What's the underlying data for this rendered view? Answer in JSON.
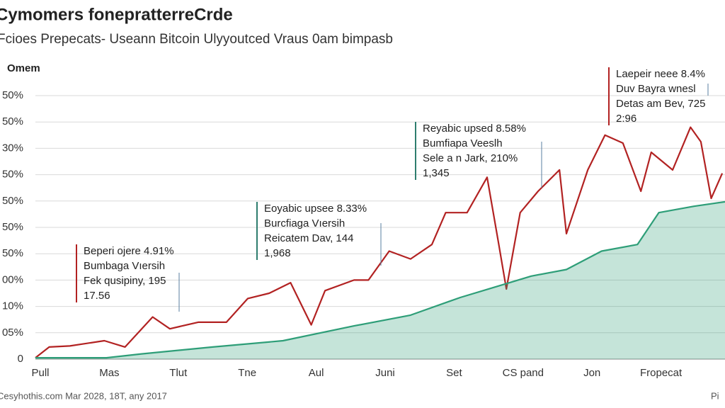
{
  "chart_data": {
    "type": "line",
    "title": "Cymomers fonepratterreCrde",
    "subtitle": "Fcioes Prepecats- Useann Bitcoin Ulyyoutced Vraus 0am bimpasb",
    "y_axis_label": "Omem",
    "footer": "Cesyhothis.com Mar 2028, 18T, any 2017",
    "footer_right": "Pi",
    "xlim": [
      0,
      100
    ],
    "xticks": [
      {
        "value": 0,
        "label": "Pull"
      },
      {
        "value": 10,
        "label": "Mas"
      },
      {
        "value": 20,
        "label": "Tlut"
      },
      {
        "value": 30,
        "label": "Tne"
      },
      {
        "value": 40,
        "label": "Aul"
      },
      {
        "value": 50,
        "label": "Juni"
      },
      {
        "value": 60,
        "label": "Set"
      },
      {
        "value": 70,
        "label": "CS pand"
      },
      {
        "value": 80,
        "label": "Jon"
      },
      {
        "value": 90,
        "label": "Fropecat"
      }
    ],
    "ylim": [
      0,
      100
    ],
    "yticks": [
      0,
      {
        "value": 10,
        "label": "05%"
      },
      {
        "value": 20,
        "label": "10%"
      },
      {
        "value": 30,
        "label": "00%"
      },
      {
        "value": 40,
        "label": "50%"
      },
      {
        "value": 50,
        "label": "50%"
      },
      {
        "value": 60,
        "label": "50%"
      },
      {
        "value": 70,
        "label": "50%"
      },
      {
        "value": 80,
        "label": "30%"
      },
      {
        "value": 90,
        "label": "50%"
      },
      {
        "value": 100,
        "label": "50%"
      }
    ],
    "grid": true,
    "series": [
      {
        "color": "#b22222",
        "fill": false,
        "x": [
          0,
          2,
          5,
          10,
          13,
          17,
          19.5,
          23.6,
          27.7,
          30.8,
          33.9,
          37,
          40,
          42,
          46.2,
          48.3,
          51.3,
          54.4,
          57.5,
          59.5,
          62.6,
          65.5,
          67.2,
          68.3,
          70.3,
          72.9,
          76,
          77,
          80.1,
          82.6,
          85.2,
          87.8,
          89.3,
          92.4,
          95,
          96.5,
          98,
          99.6
        ],
        "values": [
          0.5,
          4.6,
          5,
          7,
          4.6,
          16,
          11.5,
          14,
          14,
          23,
          25,
          29,
          13,
          26,
          30,
          30,
          41,
          38,
          43.5,
          55.6,
          55.6,
          69,
          43.5,
          26.6,
          55.6,
          63.7,
          71.8,
          47.6,
          71.8,
          85,
          82,
          63.7,
          78.5,
          71.8,
          88,
          82.5,
          61,
          70.5
        ]
      },
      {
        "color": "#2e9e78",
        "fill": true,
        "x": [
          0,
          10.3,
          15.4,
          25.7,
          35.9,
          46.2,
          54.4,
          61.6,
          66.7,
          71.9,
          77,
          82.1,
          87.3,
          90.4,
          95.5,
          100
        ],
        "values": [
          0.5,
          0.5,
          2,
          4.6,
          7,
          12.6,
          16.7,
          23.4,
          27.4,
          31.5,
          34,
          41,
          43.5,
          55.6,
          58,
          59.7
        ]
      }
    ],
    "annotations": [
      {
        "color": "#b22222",
        "lines": [
          "Beperi ojere 4.91%",
          "Bumbaga Vıersih",
          "Fek qusipiny, 195",
          "17.56"
        ]
      },
      {
        "color": "#2e7d6e",
        "lines": [
          "Eoyabic upsee 8.33%",
          "Burcfiaga Vıersih",
          "Reicatem Dav, 144",
          "1,968"
        ]
      },
      {
        "color": "#2e7d6e",
        "lines": [
          "Reyabic upsed 8.58%",
          "Bumfiapa Veeslh",
          "Sele a n Jark, 210%",
          "1,345"
        ]
      },
      {
        "color": "#b22222",
        "lines": [
          "Laepeir neee 8.4%",
          "Duv Bayra wnesl",
          "Detas am Bev, 725",
          "2:96"
        ]
      }
    ]
  }
}
